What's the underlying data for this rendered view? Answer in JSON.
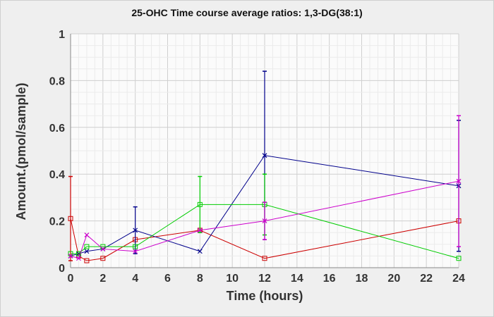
{
  "chart_data": {
    "type": "line",
    "title": "25-OHC Time course average ratios: 1,3-DG(38:1)",
    "xlabel": "Time (hours)",
    "ylabel": "Amount.(pmol/sample)",
    "xlim": [
      0,
      24
    ],
    "ylim": [
      0,
      1
    ],
    "xticks": [
      0,
      2,
      4,
      6,
      8,
      10,
      12,
      14,
      16,
      18,
      20,
      22,
      24
    ],
    "yticks": [
      0,
      0.2,
      0.4,
      0.6,
      0.8,
      1
    ],
    "ytick_labels": [
      "0",
      "0.2",
      "0.4",
      "0.6",
      "0.8",
      "1"
    ],
    "grid": true,
    "series": [
      {
        "name": "series-red",
        "color": "#cc0000",
        "marker": "square",
        "x": [
          0,
          0.5,
          1,
          2,
          4,
          8,
          12,
          24
        ],
        "y": [
          0.21,
          0.05,
          0.03,
          0.04,
          0.12,
          0.16,
          0.04,
          0.2
        ],
        "err": [
          0.18,
          0,
          0,
          0,
          0,
          0,
          0,
          0
        ]
      },
      {
        "name": "series-blue",
        "color": "#00008b",
        "marker": "x",
        "x": [
          0,
          0.5,
          1,
          2,
          4,
          8,
          12,
          24
        ],
        "y": [
          0.05,
          0.06,
          0.07,
          0.08,
          0.16,
          0.07,
          0.48,
          0.35
        ],
        "err": [
          0,
          0,
          0,
          0,
          0.1,
          0,
          0.36,
          0.28
        ]
      },
      {
        "name": "series-green",
        "color": "#00cc00",
        "marker": "square",
        "x": [
          0,
          0.5,
          1,
          2,
          4,
          8,
          12,
          24
        ],
        "y": [
          0.06,
          0.06,
          0.09,
          0.09,
          0.09,
          0.27,
          0.27,
          0.04
        ],
        "err": [
          0,
          0,
          0,
          0,
          0,
          0.12,
          0.13,
          0
        ]
      },
      {
        "name": "series-magenta",
        "color": "#cc00cc",
        "marker": "x",
        "x": [
          0,
          0.5,
          1,
          2,
          4,
          8,
          12,
          24
        ],
        "y": [
          0.05,
          0.04,
          0.14,
          0.08,
          0.07,
          0.16,
          0.2,
          0.37
        ],
        "err": [
          0,
          0,
          0,
          0,
          0,
          0,
          0.08,
          0.28
        ]
      }
    ]
  }
}
